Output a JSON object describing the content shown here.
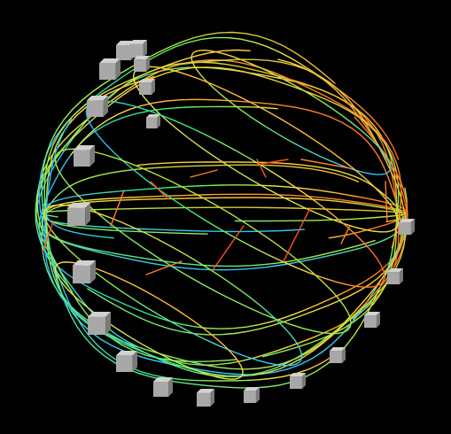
{
  "scene": {
    "background": "#000000",
    "cube_color": "#a8a8a8",
    "cube_shade_dark": "#7a7a7a",
    "cube_shade_light": "#d2d2d2",
    "gradient_colors": [
      "#2fb8ff",
      "#2fe0c8",
      "#38f070",
      "#b8f040",
      "#ffe040",
      "#ffa030",
      "#ff5020"
    ]
  }
}
